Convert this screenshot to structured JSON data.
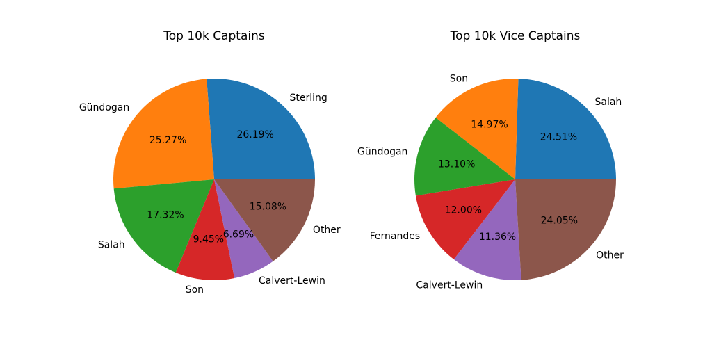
{
  "chart_data": [
    {
      "type": "pie",
      "title": "Top 10k Captains",
      "labels": [
        "Sterling",
        "Gündogan",
        "Salah",
        "Son",
        "Calvert-Lewin",
        "Other"
      ],
      "values": [
        26.19,
        25.27,
        17.32,
        9.45,
        6.69,
        15.08
      ],
      "percent_labels": [
        "26.19%",
        "25.27%",
        "17.32%",
        "9.45%",
        "6.69%",
        "15.08%"
      ],
      "colors": [
        "#1f77b4",
        "#ff7f0e",
        "#2ca02c",
        "#d62728",
        "#9467bd",
        "#8c564b"
      ],
      "start_angle_deg": 0,
      "direction": "counterclockwise"
    },
    {
      "type": "pie",
      "title": "Top 10k Vice Captains",
      "labels": [
        "Salah",
        "Son",
        "Gündogan",
        "Fernandes",
        "Calvert-Lewin",
        "Other"
      ],
      "values": [
        24.51,
        14.97,
        13.1,
        12.0,
        11.36,
        24.05
      ],
      "percent_labels": [
        "24.51%",
        "14.97%",
        "13.10%",
        "12.00%",
        "11.36%",
        "24.05%"
      ],
      "colors": [
        "#1f77b4",
        "#ff7f0e",
        "#2ca02c",
        "#d62728",
        "#9467bd",
        "#8c564b"
      ],
      "start_angle_deg": 0,
      "direction": "counterclockwise"
    }
  ]
}
